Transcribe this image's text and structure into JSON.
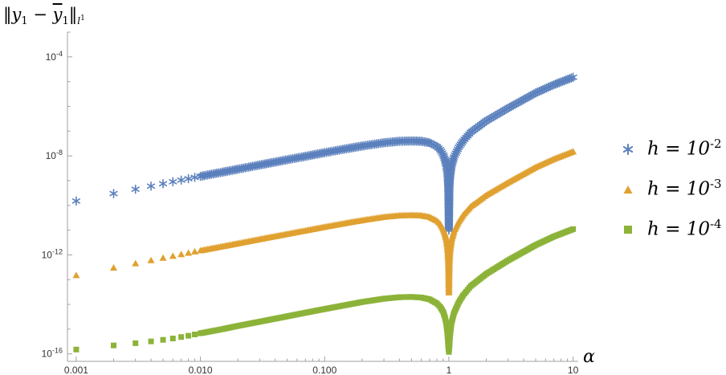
{
  "chart_data": {
    "type": "scatter",
    "title": "",
    "ylabel_parts": {
      "norm_open": "‖",
      "y": "y",
      "sub1": "1",
      "minus": " − ",
      "ytilde": "y",
      "sub2": "1",
      "norm_close": "‖",
      "norm_sub": "l",
      "norm_sup": "1"
    },
    "xlabel": "α",
    "x_scale": "log",
    "y_scale": "log",
    "xlim": [
      0.00085,
      11
    ],
    "ylim": [
      5e-17,
      0.001
    ],
    "x_ticks": [
      {
        "value": 0.001,
        "label": "0.001"
      },
      {
        "value": 0.01,
        "label": "0.010"
      },
      {
        "value": 0.1,
        "label": "0.100"
      },
      {
        "value": 1,
        "label": "1"
      },
      {
        "value": 10,
        "label": "10"
      }
    ],
    "y_ticks": [
      {
        "value": 0.0001,
        "base": "10",
        "exp": "-4"
      },
      {
        "value": 1e-08,
        "base": "10",
        "exp": "-8"
      },
      {
        "value": 1e-12,
        "base": "10",
        "exp": "-12"
      },
      {
        "value": 1e-16,
        "base": "10",
        "exp": "-16"
      }
    ],
    "series": [
      {
        "name": "h = 10^-2",
        "legend_eq": "h = 10",
        "legend_exp": "-2",
        "marker": "star",
        "color": "#5b80bd",
        "points": [
          [
            0.001,
            1.5e-10
          ],
          [
            0.002,
            3e-10
          ],
          [
            0.003,
            4.5e-10
          ],
          [
            0.004,
            6e-10
          ],
          [
            0.005,
            7.5e-10
          ],
          [
            0.006,
            9e-10
          ],
          [
            0.007,
            1.05e-09
          ],
          [
            0.008,
            1.2e-09
          ],
          [
            0.009,
            1.35e-09
          ],
          [
            0.01,
            1.5e-09
          ],
          [
            0.015,
            2.2e-09
          ],
          [
            0.02,
            2.9e-09
          ],
          [
            0.03,
            4.3e-09
          ],
          [
            0.05,
            7e-09
          ],
          [
            0.07,
            9.6e-09
          ],
          [
            0.1,
            1.35e-08
          ],
          [
            0.15,
            1.95e-08
          ],
          [
            0.2,
            2.5e-08
          ],
          [
            0.3,
            3.4e-08
          ],
          [
            0.4,
            3.9e-08
          ],
          [
            0.5,
            4e-08
          ],
          [
            0.6,
            3.9e-08
          ],
          [
            0.7,
            3.4e-08
          ],
          [
            0.8,
            2.4e-08
          ],
          [
            0.85,
            1.8e-08
          ],
          [
            0.9,
            1.1e-08
          ],
          [
            0.93,
            7e-09
          ],
          [
            0.95,
            4.5e-09
          ],
          [
            0.97,
            2.2e-09
          ],
          [
            0.98,
            1.3e-09
          ],
          [
            0.99,
            5e-10
          ],
          [
            1.0,
            1e-11
          ],
          [
            1.01,
            5e-10
          ],
          [
            1.02,
            1.3e-09
          ],
          [
            1.05,
            4e-09
          ],
          [
            1.1,
            9e-09
          ],
          [
            1.2,
            2.2e-08
          ],
          [
            1.3,
            4e-08
          ],
          [
            1.5,
            9e-08
          ],
          [
            2.0,
            2.6e-07
          ],
          [
            3.0,
            8.5e-07
          ],
          [
            5.0,
            3.5e-06
          ],
          [
            7.0,
            7.5e-06
          ],
          [
            10.0,
            1.5e-05
          ]
        ]
      },
      {
        "name": "h = 10^-3",
        "legend_eq": "h = 10",
        "legend_exp": "-3",
        "marker": "triangle",
        "color": "#e0a130",
        "points": [
          [
            0.001,
            1.5e-13
          ],
          [
            0.002,
            3e-13
          ],
          [
            0.003,
            4.5e-13
          ],
          [
            0.004,
            6e-13
          ],
          [
            0.005,
            7.5e-13
          ],
          [
            0.006,
            9e-13
          ],
          [
            0.007,
            1.05e-12
          ],
          [
            0.008,
            1.2e-12
          ],
          [
            0.009,
            1.35e-12
          ],
          [
            0.01,
            1.5e-12
          ],
          [
            0.015,
            2.2e-12
          ],
          [
            0.02,
            2.9e-12
          ],
          [
            0.03,
            4.3e-12
          ],
          [
            0.05,
            7e-12
          ],
          [
            0.07,
            9.6e-12
          ],
          [
            0.1,
            1.35e-11
          ],
          [
            0.15,
            1.95e-11
          ],
          [
            0.2,
            2.5e-11
          ],
          [
            0.3,
            3.4e-11
          ],
          [
            0.4,
            3.9e-11
          ],
          [
            0.5,
            4e-11
          ],
          [
            0.6,
            3.9e-11
          ],
          [
            0.7,
            3.4e-11
          ],
          [
            0.8,
            2.4e-11
          ],
          [
            0.85,
            1.8e-11
          ],
          [
            0.9,
            1.1e-11
          ],
          [
            0.93,
            7e-12
          ],
          [
            0.95,
            4.5e-12
          ],
          [
            0.97,
            2.2e-12
          ],
          [
            0.98,
            1.3e-12
          ],
          [
            0.99,
            5e-13
          ],
          [
            1.0,
            3e-14
          ],
          [
            1.01,
            5e-13
          ],
          [
            1.02,
            1.3e-12
          ],
          [
            1.05,
            4e-12
          ],
          [
            1.1,
            9e-12
          ],
          [
            1.2,
            2.2e-11
          ],
          [
            1.3,
            4e-11
          ],
          [
            1.5,
            9e-11
          ],
          [
            2.0,
            2.6e-10
          ],
          [
            3.0,
            8.5e-10
          ],
          [
            5.0,
            3.5e-09
          ],
          [
            7.0,
            7.5e-09
          ],
          [
            10.0,
            1.5e-08
          ]
        ]
      },
      {
        "name": "h = 10^-4",
        "legend_eq": "h = 10",
        "legend_exp": "-4",
        "marker": "square",
        "color": "#8cb339",
        "points": [
          [
            0.001,
            1.5e-16
          ],
          [
            0.002,
            2.2e-16
          ],
          [
            0.003,
            2.7e-16
          ],
          [
            0.004,
            3.2e-16
          ],
          [
            0.005,
            3.7e-16
          ],
          [
            0.006,
            4.2e-16
          ],
          [
            0.007,
            4.8e-16
          ],
          [
            0.008,
            5.4e-16
          ],
          [
            0.009,
            6.1e-16
          ],
          [
            0.01,
            6.8e-16
          ],
          [
            0.015,
            1e-15
          ],
          [
            0.02,
            1.35e-15
          ],
          [
            0.03,
            2e-15
          ],
          [
            0.05,
            3.3e-15
          ],
          [
            0.07,
            4.6e-15
          ],
          [
            0.1,
            6.5e-15
          ],
          [
            0.15,
            9.5e-15
          ],
          [
            0.2,
            1.25e-14
          ],
          [
            0.3,
            1.7e-14
          ],
          [
            0.4,
            1.95e-14
          ],
          [
            0.5,
            2e-14
          ],
          [
            0.6,
            1.9e-14
          ],
          [
            0.7,
            1.6e-14
          ],
          [
            0.8,
            1.1e-14
          ],
          [
            0.85,
            8e-15
          ],
          [
            0.9,
            5e-15
          ],
          [
            0.93,
            3e-15
          ],
          [
            0.95,
            1.8e-15
          ],
          [
            0.97,
            8e-16
          ],
          [
            0.98,
            4e-16
          ],
          [
            0.99,
            1.8e-16
          ],
          [
            1.0,
            1.2e-16
          ],
          [
            1.01,
            2e-16
          ],
          [
            1.02,
            5e-16
          ],
          [
            1.05,
            1.8e-15
          ],
          [
            1.1,
            4.5e-15
          ],
          [
            1.2,
            1.2e-14
          ],
          [
            1.3,
            2.3e-14
          ],
          [
            1.5,
            5.5e-14
          ],
          [
            2.0,
            1.7e-13
          ],
          [
            3.0,
            6e-13
          ],
          [
            5.0,
            2.5e-12
          ],
          [
            7.0,
            5.5e-12
          ],
          [
            10.0,
            1.1e-11
          ]
        ]
      }
    ]
  }
}
